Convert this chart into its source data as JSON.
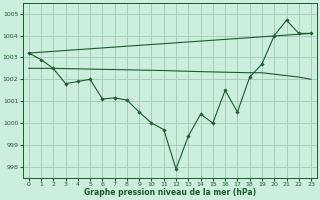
{
  "xlabel": "Graphe pression niveau de la mer (hPa)",
  "background_color": "#cceedd",
  "grid_color": "#aaccbb",
  "line_color": "#1a5c2a",
  "marker_color": "#1a5c2a",
  "ylim": [
    997.5,
    1005.5
  ],
  "yticks": [
    998,
    999,
    1000,
    1001,
    1002,
    1003,
    1004,
    1005
  ],
  "xlim": [
    -0.5,
    23.5
  ],
  "xticks": [
    0,
    1,
    2,
    3,
    4,
    5,
    6,
    7,
    8,
    9,
    10,
    11,
    12,
    13,
    14,
    15,
    16,
    17,
    18,
    19,
    20,
    21,
    22,
    23
  ],
  "series_main": {
    "x": [
      0,
      1,
      2,
      3,
      4,
      5,
      6,
      7,
      8,
      9,
      10,
      11,
      12,
      13,
      14,
      15,
      16,
      17,
      18,
      19,
      20,
      21,
      22,
      23
    ],
    "y": [
      1003.2,
      1002.9,
      1002.5,
      1001.8,
      1001.9,
      1002.0,
      1001.1,
      1001.15,
      1001.05,
      1000.5,
      1000.0,
      999.7,
      997.9,
      999.4,
      1000.4,
      1000.0,
      1001.5,
      1000.5,
      1002.1,
      1002.7,
      1004.0,
      1004.7,
      1004.1,
      1004.1
    ]
  },
  "series_trend": {
    "x": [
      0,
      23
    ],
    "y": [
      1003.2,
      1004.1
    ]
  },
  "series_flat": {
    "x": [
      0,
      2,
      11,
      14,
      18,
      19,
      22,
      23
    ],
    "y": [
      1002.5,
      1002.5,
      1002.4,
      1002.35,
      1002.3,
      1002.3,
      1002.1,
      1002.0
    ]
  }
}
